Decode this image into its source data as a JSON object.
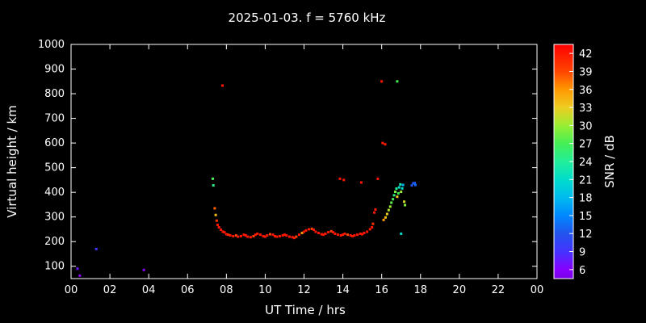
{
  "title": "2025-01-03. f = 5760 kHz",
  "chart_data": {
    "type": "scatter",
    "title": "2025-01-03. f = 5760 kHz",
    "xlabel": "UT Time / hrs",
    "ylabel": "Virtual height / km",
    "xlim": [
      0,
      24
    ],
    "ylim": [
      50,
      1000
    ],
    "background": "#000000",
    "axis_color": "#ffffff",
    "grid": "off",
    "xticks": {
      "values": [
        0,
        2,
        4,
        6,
        8,
        10,
        12,
        14,
        16,
        18,
        20,
        22,
        24
      ],
      "labels": [
        "00",
        "02",
        "04",
        "06",
        "08",
        "10",
        "12",
        "14",
        "16",
        "18",
        "20",
        "22",
        "00"
      ]
    },
    "yticks": [
      100,
      200,
      300,
      400,
      500,
      600,
      700,
      800,
      900,
      1000
    ],
    "colorbar": {
      "label": "SNR / dB",
      "min": 4.5,
      "max": 43.5,
      "ticks": [
        6,
        9,
        12,
        15,
        18,
        21,
        24,
        27,
        30,
        33,
        36,
        39,
        42
      ],
      "palette": [
        {
          "v": 4.5,
          "c": "#7a00e6"
        },
        {
          "v": 6.0,
          "c": "#8800ff"
        },
        {
          "v": 9.0,
          "c": "#4433ff"
        },
        {
          "v": 12.0,
          "c": "#2255ee"
        },
        {
          "v": 15.0,
          "c": "#0088ff"
        },
        {
          "v": 18.0,
          "c": "#00bbee"
        },
        {
          "v": 21.0,
          "c": "#00ddcc"
        },
        {
          "v": 24.0,
          "c": "#22ee99"
        },
        {
          "v": 27.0,
          "c": "#44ee55"
        },
        {
          "v": 30.0,
          "c": "#99ee33"
        },
        {
          "v": 33.0,
          "c": "#eecc22"
        },
        {
          "v": 36.0,
          "c": "#ff9900"
        },
        {
          "v": 39.0,
          "c": "#ff4400"
        },
        {
          "v": 43.5,
          "c": "#ff0000"
        }
      ]
    },
    "points_format": "[ut_time_hrs, virtual_height_km, snr_db]",
    "points": [
      [
        0.33,
        90,
        7
      ],
      [
        0.45,
        62,
        6
      ],
      [
        1.3,
        170,
        9
      ],
      [
        3.75,
        85,
        6
      ],
      [
        7.3,
        455,
        27
      ],
      [
        7.33,
        428,
        25
      ],
      [
        7.4,
        335,
        38
      ],
      [
        7.45,
        308,
        34
      ],
      [
        7.5,
        285,
        40
      ],
      [
        7.55,
        268,
        42
      ],
      [
        7.62,
        258,
        42
      ],
      [
        7.72,
        248,
        42
      ],
      [
        7.8,
        833,
        42
      ],
      [
        7.82,
        240,
        42
      ],
      [
        7.9,
        238,
        42
      ],
      [
        8.0,
        230,
        42
      ],
      [
        8.1,
        228,
        40
      ],
      [
        8.2,
        225,
        42
      ],
      [
        8.35,
        222,
        42
      ],
      [
        8.5,
        225,
        39
      ],
      [
        8.6,
        220,
        42
      ],
      [
        8.75,
        222,
        42
      ],
      [
        8.9,
        228,
        42
      ],
      [
        9.0,
        225,
        42
      ],
      [
        9.1,
        220,
        42
      ],
      [
        9.25,
        218,
        42
      ],
      [
        9.4,
        222,
        39
      ],
      [
        9.5,
        228,
        42
      ],
      [
        9.6,
        232,
        42
      ],
      [
        9.75,
        228,
        42
      ],
      [
        9.9,
        222,
        42
      ],
      [
        10.0,
        220,
        42
      ],
      [
        10.1,
        225,
        42
      ],
      [
        10.25,
        230,
        39
      ],
      [
        10.4,
        228,
        42
      ],
      [
        10.5,
        222,
        42
      ],
      [
        10.6,
        220,
        42
      ],
      [
        10.75,
        222,
        42
      ],
      [
        10.9,
        225,
        42
      ],
      [
        11.0,
        228,
        42
      ],
      [
        11.1,
        225,
        42
      ],
      [
        11.25,
        220,
        42
      ],
      [
        11.4,
        218,
        42
      ],
      [
        11.5,
        215,
        42
      ],
      [
        11.6,
        220,
        39
      ],
      [
        11.75,
        228,
        42
      ],
      [
        11.9,
        235,
        36
      ],
      [
        12.0,
        240,
        42
      ],
      [
        12.1,
        245,
        42
      ],
      [
        12.25,
        250,
        42
      ],
      [
        12.4,
        252,
        39
      ],
      [
        12.5,
        248,
        42
      ],
      [
        12.6,
        240,
        42
      ],
      [
        12.75,
        235,
        42
      ],
      [
        12.9,
        230,
        42
      ],
      [
        13.0,
        228,
        42
      ],
      [
        13.1,
        232,
        42
      ],
      [
        13.25,
        238,
        42
      ],
      [
        13.4,
        242,
        39
      ],
      [
        13.5,
        238,
        42
      ],
      [
        13.6,
        232,
        42
      ],
      [
        13.75,
        228,
        42
      ],
      [
        13.9,
        225,
        42
      ],
      [
        14.0,
        228,
        42
      ],
      [
        14.1,
        232,
        42
      ],
      [
        14.25,
        228,
        39
      ],
      [
        14.4,
        225,
        42
      ],
      [
        14.5,
        222,
        42
      ],
      [
        14.6,
        225,
        42
      ],
      [
        14.75,
        228,
        42
      ],
      [
        14.9,
        232,
        42
      ],
      [
        15.0,
        230,
        42
      ],
      [
        15.1,
        235,
        42
      ],
      [
        15.25,
        240,
        42
      ],
      [
        15.4,
        250,
        42
      ],
      [
        13.85,
        455,
        42
      ],
      [
        14.05,
        450,
        42
      ],
      [
        14.95,
        440,
        42
      ],
      [
        15.5,
        258,
        42
      ],
      [
        15.55,
        272,
        40
      ],
      [
        15.62,
        318,
        42
      ],
      [
        15.68,
        330,
        42
      ],
      [
        15.8,
        455,
        42
      ],
      [
        16.0,
        850,
        42
      ],
      [
        16.05,
        600,
        42
      ],
      [
        16.18,
        595,
        42
      ],
      [
        16.8,
        850,
        27
      ],
      [
        16.1,
        288,
        36
      ],
      [
        16.2,
        298,
        34
      ],
      [
        16.28,
        312,
        33
      ],
      [
        16.36,
        328,
        31
      ],
      [
        16.44,
        342,
        30
      ],
      [
        16.5,
        358,
        28
      ],
      [
        16.58,
        372,
        27
      ],
      [
        16.64,
        388,
        25
      ],
      [
        16.7,
        402,
        29
      ],
      [
        16.76,
        415,
        24
      ],
      [
        16.8,
        382,
        33
      ],
      [
        16.86,
        396,
        27
      ],
      [
        16.9,
        420,
        21
      ],
      [
        16.96,
        432,
        23
      ],
      [
        17.0,
        402,
        30
      ],
      [
        17.06,
        416,
        21
      ],
      [
        17.1,
        430,
        18
      ],
      [
        17.16,
        362,
        32
      ],
      [
        17.2,
        348,
        29
      ],
      [
        17.0,
        232,
        21
      ],
      [
        17.55,
        428,
        12
      ],
      [
        17.62,
        436,
        12
      ],
      [
        17.7,
        438,
        12
      ],
      [
        17.74,
        430,
        13
      ]
    ]
  }
}
